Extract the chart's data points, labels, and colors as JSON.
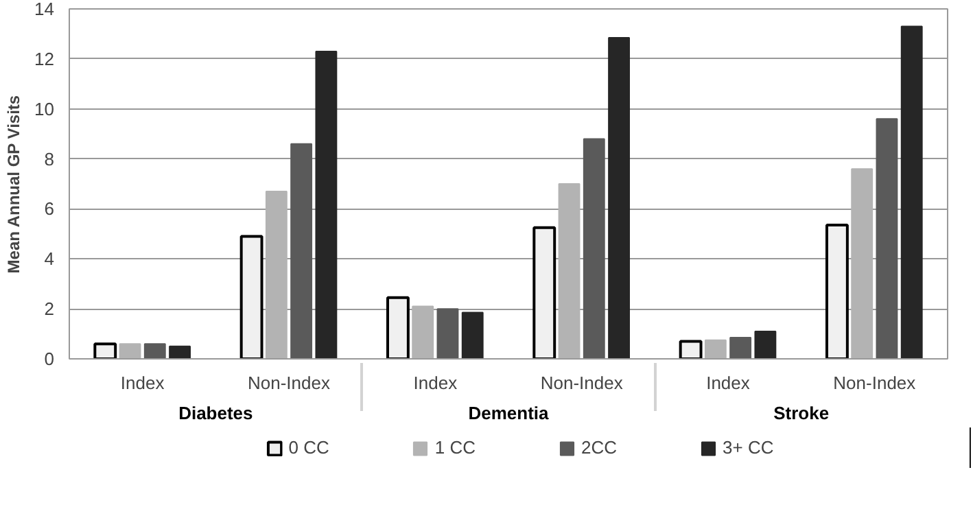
{
  "chart_data": {
    "type": "bar",
    "ylabel": "Mean Annual GP Visits",
    "categories": [
      "Index",
      "Non-Index",
      "Index",
      "Non-Index",
      "Index",
      "Non-Index"
    ],
    "annotations": [
      "Diabetes",
      "Dementia",
      "Stroke"
    ],
    "series": [
      {
        "name": "0 CC",
        "color": "#f0f0f0",
        "values": [
          0.6,
          4.9,
          2.45,
          5.25,
          0.7,
          5.35
        ]
      },
      {
        "name": "1 CC",
        "color": "#b3b3b3",
        "values": [
          0.6,
          6.7,
          2.1,
          7.0,
          0.75,
          7.6
        ]
      },
      {
        "name": "2CC",
        "color": "#5a5a5a",
        "values": [
          0.6,
          8.6,
          2.0,
          8.8,
          0.85,
          9.6
        ]
      },
      {
        "name": "3+ CC",
        "color": "#262626",
        "values": [
          0.5,
          12.3,
          1.85,
          12.85,
          1.1,
          13.3
        ]
      }
    ],
    "ylim": [
      0,
      14
    ],
    "yticks": [
      0,
      2,
      4,
      6,
      8,
      10,
      12,
      14
    ],
    "grid": "y",
    "legend": "bottom"
  }
}
